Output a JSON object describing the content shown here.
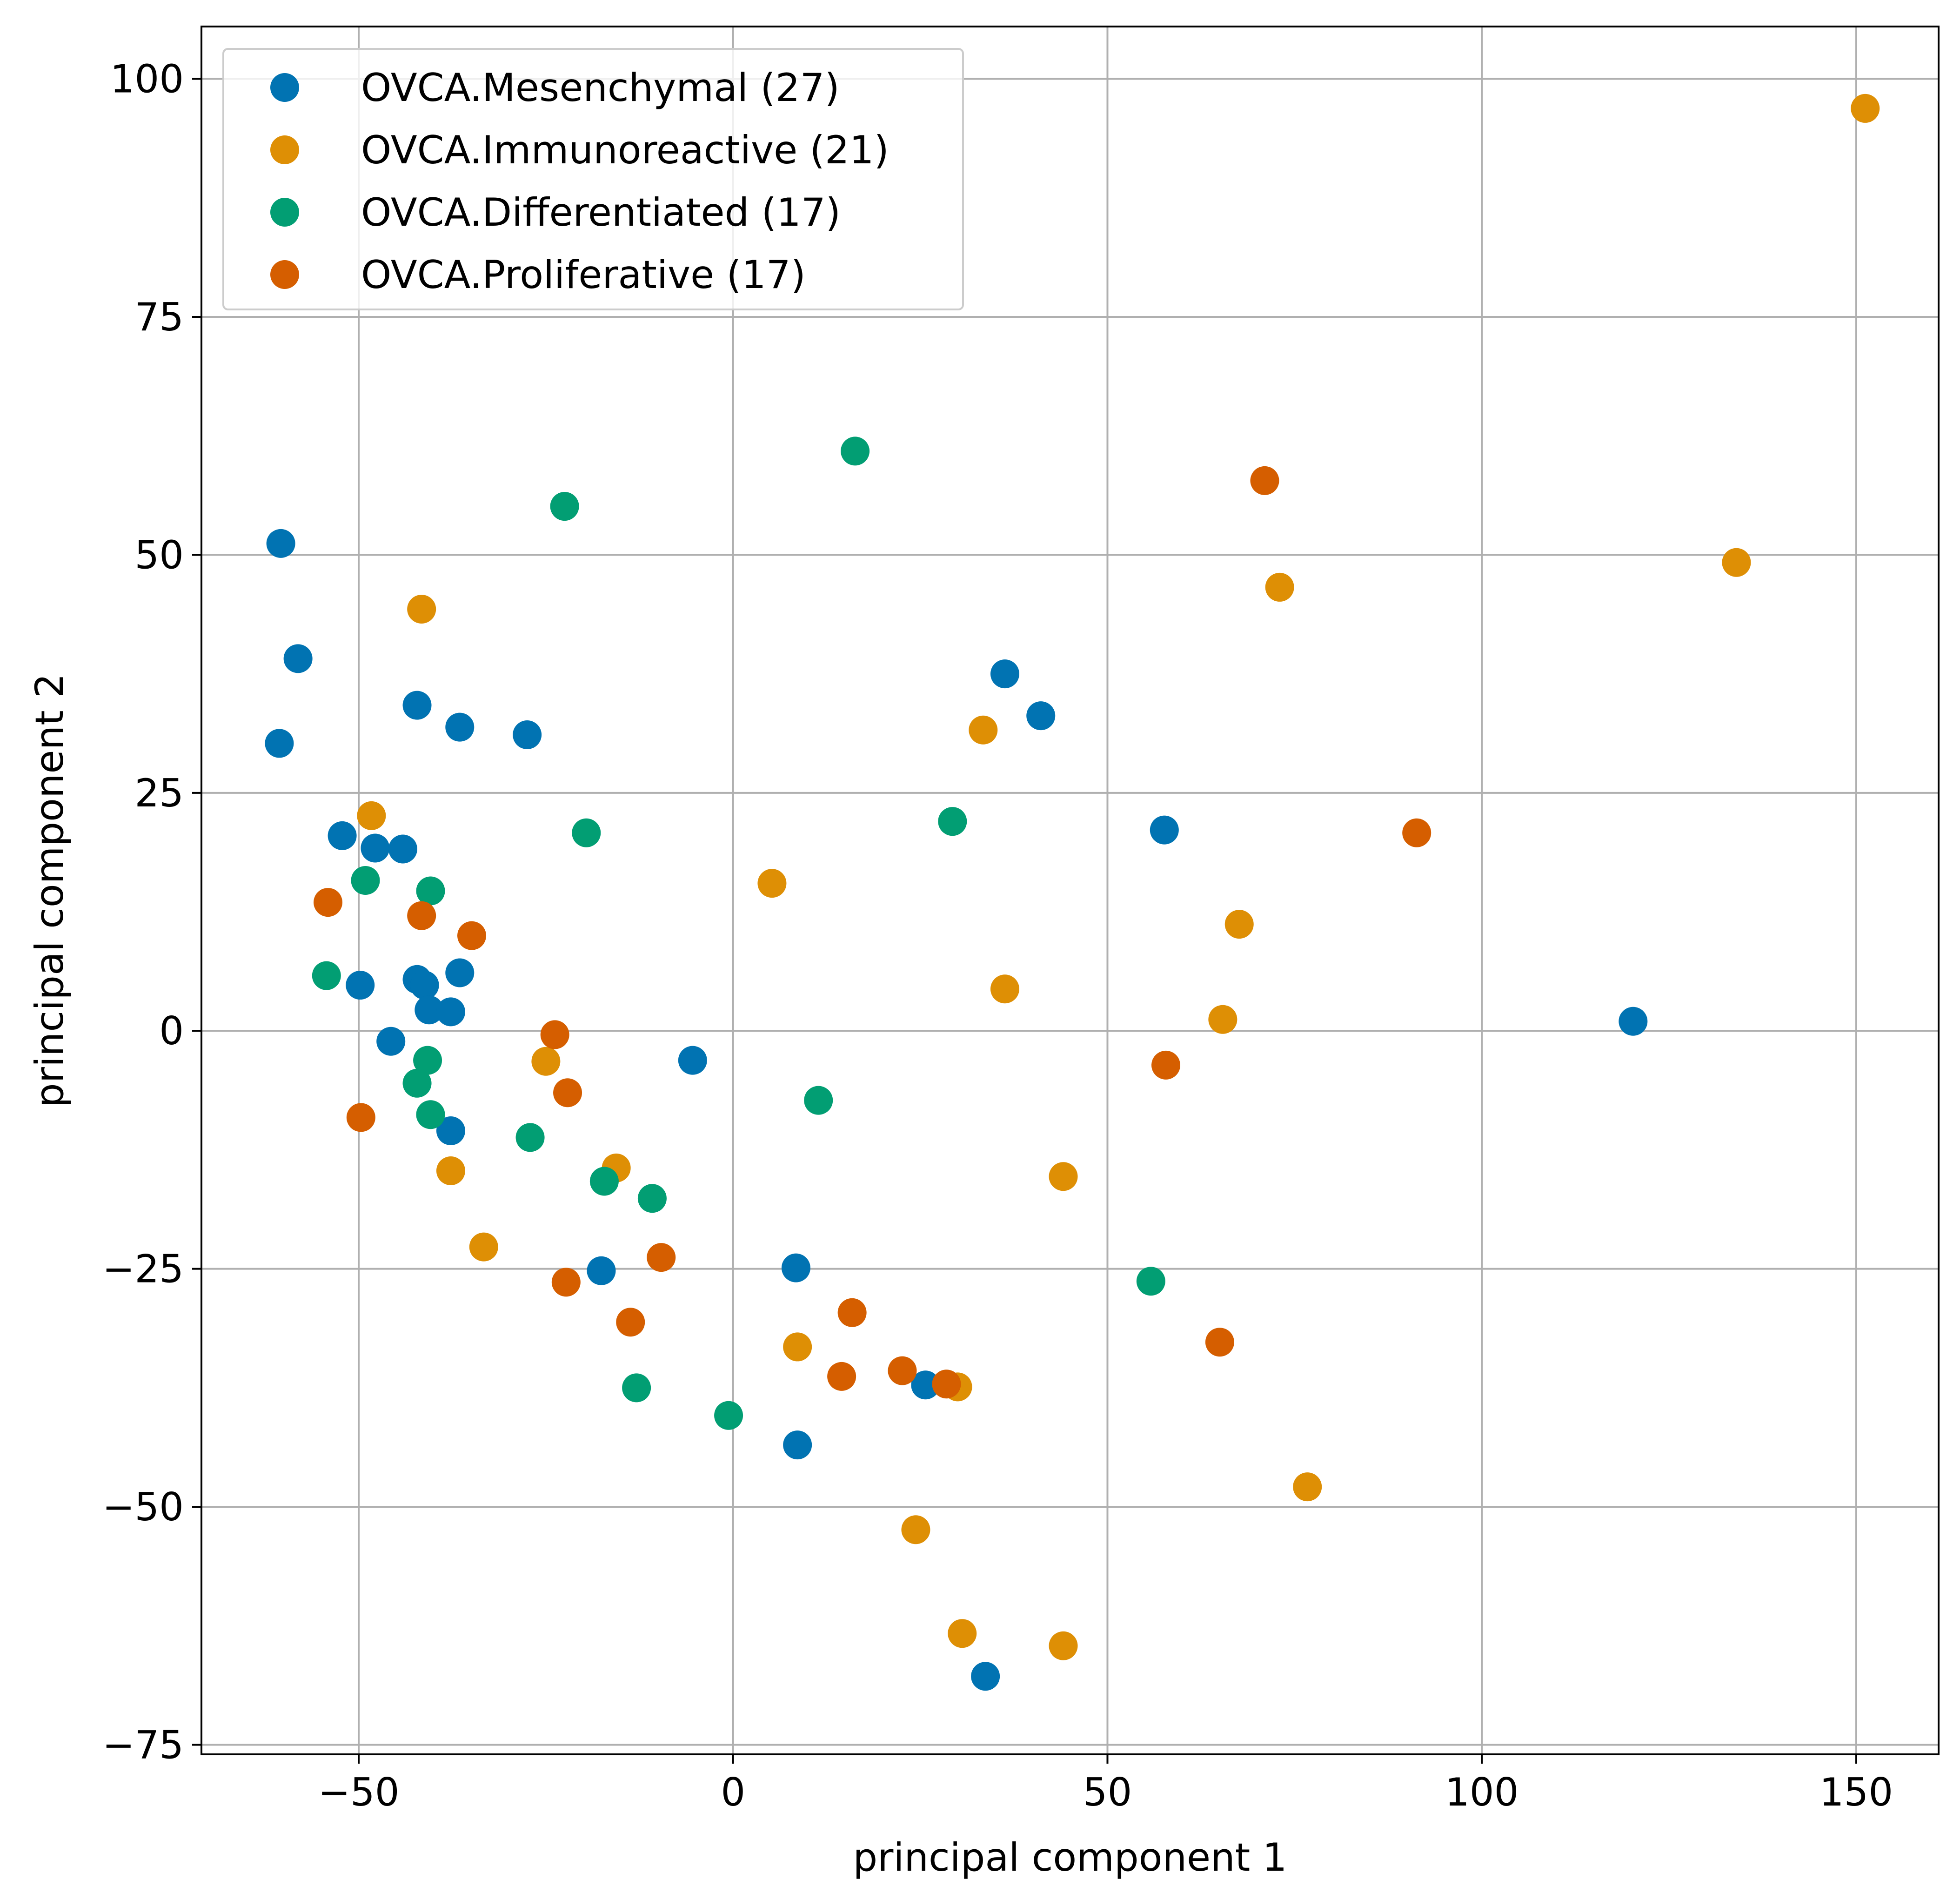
{
  "chart_data": {
    "type": "scatter",
    "xlabel": "principal component 1",
    "ylabel": "principal component 2",
    "xlim": [
      -71,
      161
    ],
    "ylim": [
      -76,
      105.5
    ],
    "xticks": [
      -50,
      0,
      50,
      100,
      150
    ],
    "yticks": [
      -75,
      -50,
      -25,
      0,
      25,
      50,
      75,
      100
    ],
    "xtick_labels": [
      "−50",
      "0",
      "50",
      "100",
      "150"
    ],
    "ytick_labels": [
      "−75",
      "−50",
      "−25",
      "0",
      "25",
      "50",
      "75",
      "100"
    ],
    "grid": true,
    "legend_position": "top-left",
    "series": [
      {
        "name": "OVCA.Mesenchymal (27)",
        "color": "#0173b2",
        "points": [
          [
            -60.4,
            51.2
          ],
          [
            -58.1,
            39.1
          ],
          [
            -60.6,
            30.2
          ],
          [
            -42.2,
            34.2
          ],
          [
            -36.5,
            31.9
          ],
          [
            -27.5,
            31.1
          ],
          [
            -52.2,
            20.5
          ],
          [
            -47.8,
            19.2
          ],
          [
            -44.1,
            19.1
          ],
          [
            -49.8,
            4.8
          ],
          [
            -42.2,
            5.4
          ],
          [
            -41.2,
            4.8
          ],
          [
            -40.6,
            2.2
          ],
          [
            -37.7,
            2.0
          ],
          [
            -36.5,
            6.1
          ],
          [
            -45.7,
            -1.1
          ],
          [
            -37.7,
            -10.5
          ],
          [
            -5.4,
            -3.1
          ],
          [
            -17.6,
            -25.2
          ],
          [
            8.4,
            -24.9
          ],
          [
            8.6,
            -43.5
          ],
          [
            25.7,
            -37.2
          ],
          [
            33.7,
            -67.8
          ],
          [
            36.3,
            37.5
          ],
          [
            41.1,
            33.1
          ],
          [
            57.6,
            21.1
          ],
          [
            120.2,
            1.0
          ]
        ]
      },
      {
        "name": "OVCA.Immunoreactive (21)",
        "color": "#de8f05",
        "points": [
          [
            151.2,
            96.9
          ],
          [
            134.0,
            49.2
          ],
          [
            73.0,
            46.6
          ],
          [
            -41.6,
            44.3
          ],
          [
            33.4,
            31.6
          ],
          [
            -48.3,
            22.6
          ],
          [
            5.2,
            15.5
          ],
          [
            67.6,
            11.2
          ],
          [
            36.3,
            4.4
          ],
          [
            65.4,
            1.2
          ],
          [
            -25.0,
            -3.2
          ],
          [
            -15.6,
            -14.4
          ],
          [
            44.1,
            -15.3
          ],
          [
            -37.7,
            -14.7
          ],
          [
            -33.3,
            -22.7
          ],
          [
            8.6,
            -33.2
          ],
          [
            30.0,
            -37.4
          ],
          [
            76.7,
            -47.9
          ],
          [
            24.4,
            -52.4
          ],
          [
            30.6,
            -63.3
          ],
          [
            44.1,
            -64.6
          ]
        ]
      },
      {
        "name": "OVCA.Differentiated (17)",
        "color": "#029e73",
        "points": [
          [
            16.3,
            60.9
          ],
          [
            -22.5,
            55.1
          ],
          [
            -19.6,
            20.8
          ],
          [
            29.3,
            22.0
          ],
          [
            -49.1,
            15.8
          ],
          [
            -40.4,
            14.7
          ],
          [
            -54.3,
            5.8
          ],
          [
            -40.8,
            -3.1
          ],
          [
            -42.2,
            -5.5
          ],
          [
            -40.4,
            -8.8
          ],
          [
            11.4,
            -7.3
          ],
          [
            -27.1,
            -11.2
          ],
          [
            -17.2,
            -15.8
          ],
          [
            -10.8,
            -17.6
          ],
          [
            55.8,
            -26.3
          ],
          [
            -12.9,
            -37.5
          ],
          [
            -0.6,
            -40.4
          ]
        ]
      },
      {
        "name": "OVCA.Proliferative (17)",
        "color": "#d55e00",
        "points": [
          [
            71.0,
            57.8
          ],
          [
            91.3,
            20.8
          ],
          [
            -54.1,
            13.5
          ],
          [
            -41.6,
            12.1
          ],
          [
            -34.9,
            10.0
          ],
          [
            -23.8,
            -0.4
          ],
          [
            -22.1,
            -6.5
          ],
          [
            57.8,
            -3.6
          ],
          [
            -49.7,
            -9.1
          ],
          [
            -9.6,
            -23.8
          ],
          [
            -22.3,
            -26.4
          ],
          [
            -13.7,
            -30.6
          ],
          [
            15.9,
            -29.6
          ],
          [
            65.0,
            -32.7
          ],
          [
            14.5,
            -36.3
          ],
          [
            22.6,
            -35.7
          ],
          [
            28.5,
            -37.1
          ]
        ]
      }
    ]
  }
}
